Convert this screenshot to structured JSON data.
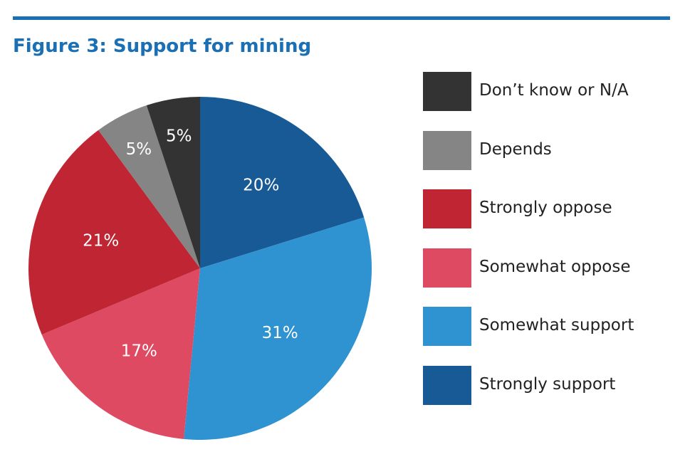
{
  "title": "Figure 3: Support for mining",
  "colors": {
    "rule": "#1a6fb5",
    "title": "#1a6fb5"
  },
  "chart_data": {
    "type": "pie",
    "title": "Figure 3: Support for mining",
    "legend_position": "right",
    "slices": [
      {
        "label": "Strongly support",
        "value": 20,
        "display": "20%",
        "color": "#175a96"
      },
      {
        "label": "Somewhat support",
        "value": 31,
        "display": "31%",
        "color": "#2f93d1"
      },
      {
        "label": "Somewhat oppose",
        "value": 17,
        "display": "17%",
        "color": "#df4a63"
      },
      {
        "label": "Strongly oppose",
        "value": 21,
        "display": "21%",
        "color": "#bf2533"
      },
      {
        "label": "Depends",
        "value": 5,
        "display": "5%",
        "color": "#858585"
      },
      {
        "label": "Don’t know or N/A",
        "value": 5,
        "display": "5%",
        "color": "#333333"
      }
    ],
    "legend_order": [
      "Don’t know or N/A",
      "Depends",
      "Strongly oppose",
      "Somewhat oppose",
      "Somewhat support",
      "Strongly support"
    ]
  }
}
